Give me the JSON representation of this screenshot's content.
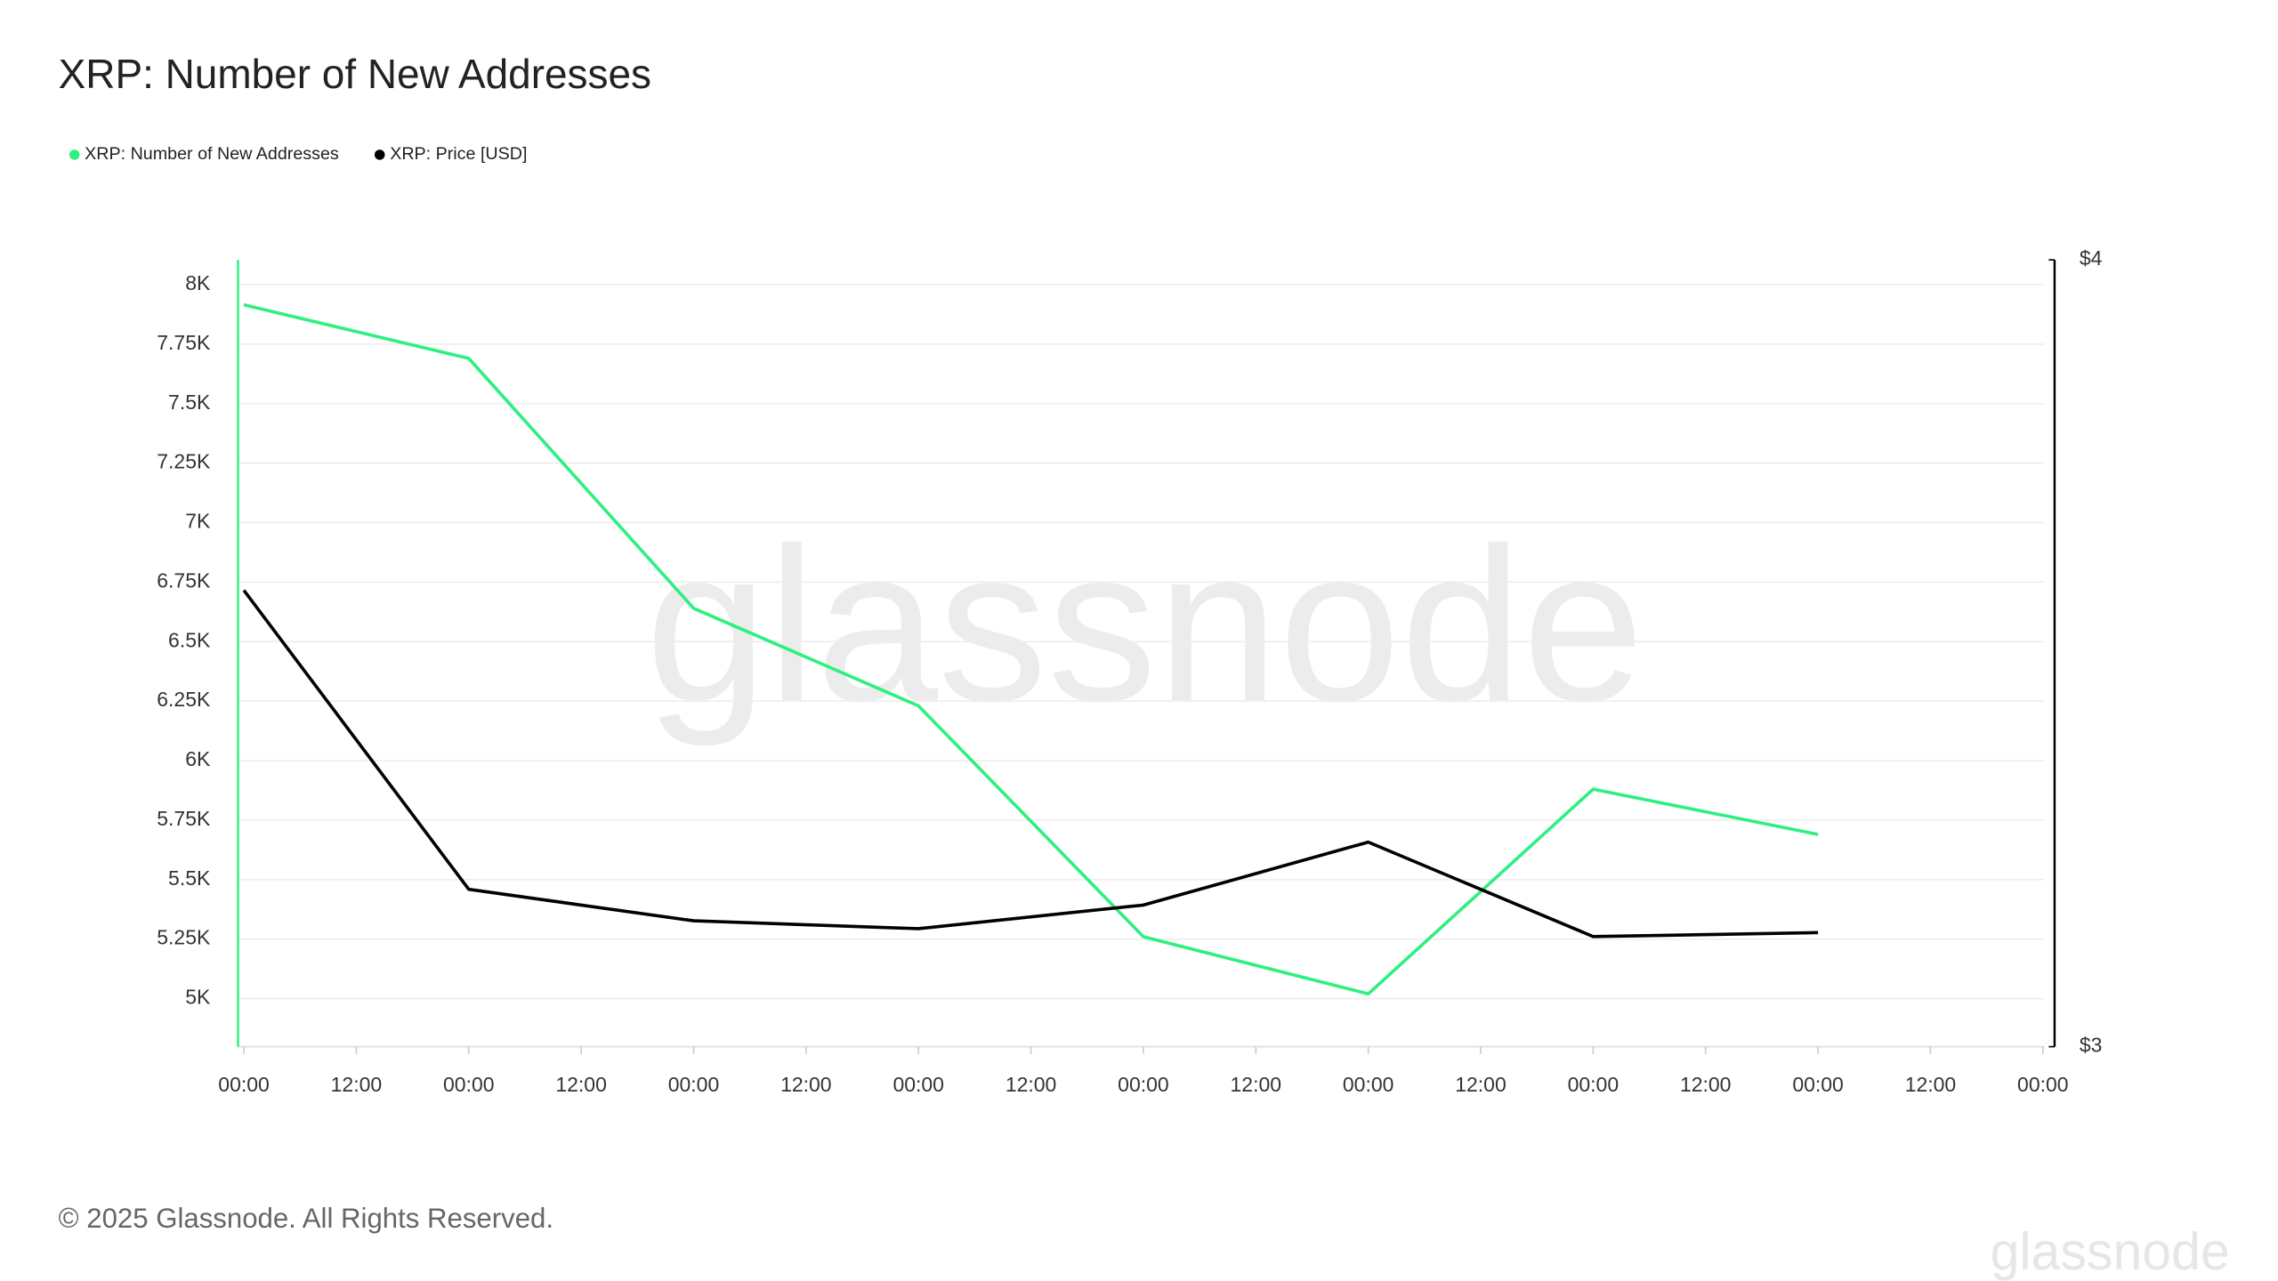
{
  "chart_data": {
    "type": "line",
    "title": "XRP: Number of New Addresses",
    "watermark": "glassnode",
    "footer": "© 2025 Glassnode. All Rights Reserved.",
    "logo": "glassnode",
    "x": [
      0,
      24,
      48,
      72,
      96,
      120,
      144,
      168
    ],
    "xlim": [
      0,
      192
    ],
    "xticks": [
      {
        "value": 0,
        "label": "00:00"
      },
      {
        "value": 12,
        "label": "12:00"
      },
      {
        "value": 24,
        "label": "00:00"
      },
      {
        "value": 36,
        "label": "12:00"
      },
      {
        "value": 48,
        "label": "00:00"
      },
      {
        "value": 60,
        "label": "12:00"
      },
      {
        "value": 72,
        "label": "00:00"
      },
      {
        "value": 84,
        "label": "12:00"
      },
      {
        "value": 96,
        "label": "00:00"
      },
      {
        "value": 108,
        "label": "12:00"
      },
      {
        "value": 120,
        "label": "00:00"
      },
      {
        "value": 132,
        "label": "12:00"
      },
      {
        "value": 144,
        "label": "00:00"
      },
      {
        "value": 156,
        "label": "12:00"
      },
      {
        "value": 168,
        "label": "00:00"
      },
      {
        "value": 180,
        "label": "12:00"
      },
      {
        "value": 192,
        "label": "00:00"
      }
    ],
    "ylim": [
      4798,
      8104
    ],
    "yticks": [
      {
        "value": 5000,
        "label": "5K"
      },
      {
        "value": 5250,
        "label": "5.25K"
      },
      {
        "value": 5500,
        "label": "5.5K"
      },
      {
        "value": 5750,
        "label": "5.75K"
      },
      {
        "value": 6000,
        "label": "6K"
      },
      {
        "value": 6250,
        "label": "6.25K"
      },
      {
        "value": 6500,
        "label": "6.5K"
      },
      {
        "value": 6750,
        "label": "6.75K"
      },
      {
        "value": 7000,
        "label": "7K"
      },
      {
        "value": 7250,
        "label": "7.25K"
      },
      {
        "value": 7500,
        "label": "7.5K"
      },
      {
        "value": 7750,
        "label": "7.75K"
      },
      {
        "value": 8000,
        "label": "8K"
      }
    ],
    "y2lim": [
      3,
      4
    ],
    "y2ticks": [
      {
        "value": 3,
        "label": "$3"
      },
      {
        "value": 4,
        "label": "$4"
      }
    ],
    "grid": true,
    "legend": "top-left",
    "series": [
      {
        "name": "XRP: Number of New Addresses",
        "color": "#2ef07f",
        "values": [
          7915,
          7690,
          6640,
          6230,
          5260,
          5020,
          5880,
          5690
        ]
      },
      {
        "name": "XRP: Price [USD]",
        "color": "#000000",
        "axis": "y2",
        "values": [
          3.58,
          3.2,
          3.16,
          3.15,
          3.18,
          3.26,
          3.14,
          3.145
        ]
      }
    ]
  }
}
